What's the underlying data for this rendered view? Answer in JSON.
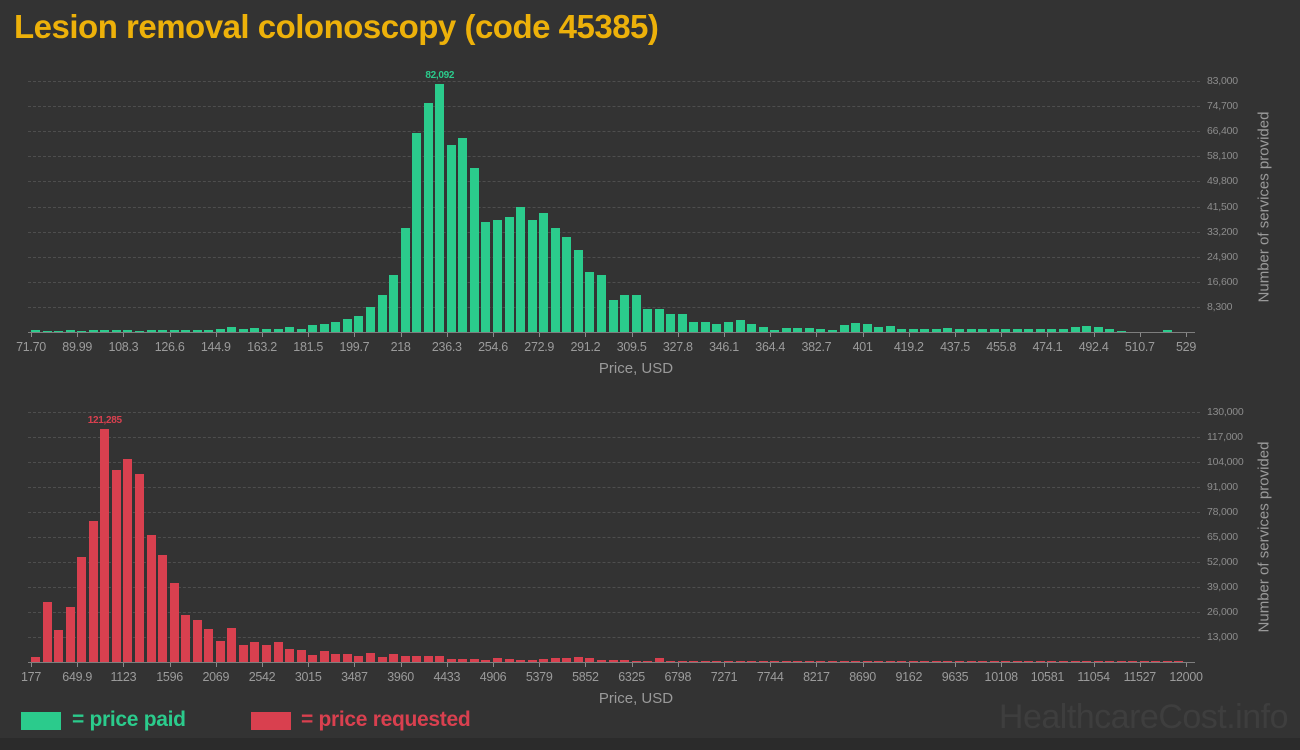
{
  "header": {
    "title": "Lesion removal colonoscopy (code 45385)"
  },
  "footer": {
    "watermark": "HealthcareCost.info"
  },
  "legend": {
    "paid": {
      "label": "= price paid",
      "color": "#2BCB8C"
    },
    "requested": {
      "label": "= price requested",
      "color": "#D9404F"
    }
  },
  "colors": {
    "background": "#333333",
    "title": "#EDB10A",
    "paid": "#2BCB8C",
    "requested": "#D9404F",
    "watermark": "#3E3E3E",
    "footer_strip": "#2B2B2B"
  },
  "chart_data": [
    {
      "type": "bar",
      "name": "price-paid-histogram",
      "series_label": "price paid",
      "color": "#2BCB8C",
      "xlabel": "Price, USD",
      "ylabel": "Number of services provided",
      "x_range": [
        71.7,
        529
      ],
      "bins": 100,
      "ymax": 83000,
      "grid": "horizontal-dashed",
      "legend_position": "bottom-left",
      "peak_label": "82,092",
      "x_ticks": [
        "71.70",
        "89.99",
        "108.3",
        "126.6",
        "144.9",
        "163.2",
        "181.5",
        "199.7",
        "218",
        "236.3",
        "254.6",
        "272.9",
        "291.2",
        "309.5",
        "327.8",
        "346.1",
        "364.4",
        "382.7",
        "401",
        "419.2",
        "437.5",
        "455.8",
        "474.1",
        "492.4",
        "510.7",
        "529"
      ],
      "y_ticks": [
        "8,300",
        "16,600",
        "24,900",
        "33,200",
        "41,500",
        "49,800",
        "58,100",
        "66,400",
        "74,700",
        "83,000"
      ],
      "values": [
        500,
        450,
        400,
        550,
        450,
        600,
        500,
        550,
        500,
        450,
        700,
        500,
        600,
        550,
        500,
        600,
        900,
        1650,
        900,
        1200,
        900,
        1100,
        1550,
        1100,
        2200,
        2650,
        3300,
        4400,
        5200,
        8300,
        12100,
        18800,
        34300,
        65800,
        75700,
        82092,
        62000,
        64200,
        54200,
        36500,
        37100,
        37900,
        41500,
        37100,
        39500,
        34300,
        31300,
        27100,
        19700,
        18800,
        10500,
        12200,
        12200,
        7700,
        7700,
        5800,
        6100,
        3300,
        3300,
        2800,
        3300,
        3850,
        2750,
        1650,
        770,
        1320,
        1320,
        1320,
        1100,
        550,
        2400,
        3100,
        2650,
        1750,
        1950,
        1100,
        880,
        990,
        880,
        1300,
        990,
        880,
        1100,
        990,
        880,
        990,
        1100,
        990,
        880,
        990,
        1650,
        2100,
        1750,
        880,
        440,
        0,
        0,
        0,
        700,
        0
      ]
    },
    {
      "type": "bar",
      "name": "price-requested-histogram",
      "series_label": "price requested",
      "color": "#D9404F",
      "xlabel": "Price, USD",
      "ylabel": "Number of services provided",
      "x_range": [
        177,
        12000
      ],
      "bins": 100,
      "ymax": 130000,
      "grid": "horizontal-dashed",
      "legend_position": "bottom-left",
      "peak_label": "121,285",
      "x_ticks": [
        "177",
        "649.9",
        "1123",
        "1596",
        "2069",
        "2542",
        "3015",
        "3487",
        "3960",
        "4433",
        "4906",
        "5379",
        "5852",
        "6325",
        "6798",
        "7271",
        "7744",
        "8217",
        "8690",
        "9162",
        "9635",
        "10108",
        "10581",
        "11054",
        "11527",
        "12000"
      ],
      "y_ticks": [
        "13,000",
        "26,000",
        "39,000",
        "52,000",
        "65,000",
        "78,000",
        "91,000",
        "104,000",
        "117,000",
        "130,000"
      ],
      "values": [
        2600,
        31300,
        16900,
        28700,
        54500,
        73400,
        121285,
        99800,
        105800,
        97700,
        66200,
        55400,
        41300,
        24400,
        21800,
        17200,
        10700,
        17500,
        8600,
        10300,
        9100,
        10300,
        6900,
        6500,
        3800,
        5700,
        4300,
        4000,
        2950,
        4850,
        2600,
        4300,
        2950,
        3100,
        3300,
        2950,
        1700,
        1550,
        1700,
        1200,
        1900,
        1400,
        1200,
        1200,
        1550,
        2250,
        2250,
        2600,
        2250,
        1200,
        850,
        850,
        500,
        400,
        2000,
        300,
        500,
        250,
        400,
        200,
        250,
        200,
        250,
        200,
        250,
        500,
        250,
        500,
        200,
        250,
        200,
        250,
        200,
        500,
        250,
        450,
        200,
        500,
        250,
        450,
        200,
        250,
        200,
        250,
        200,
        250,
        200,
        250,
        200,
        250,
        200,
        500,
        250,
        200,
        250,
        200,
        250,
        200,
        450,
        250
      ]
    }
  ]
}
